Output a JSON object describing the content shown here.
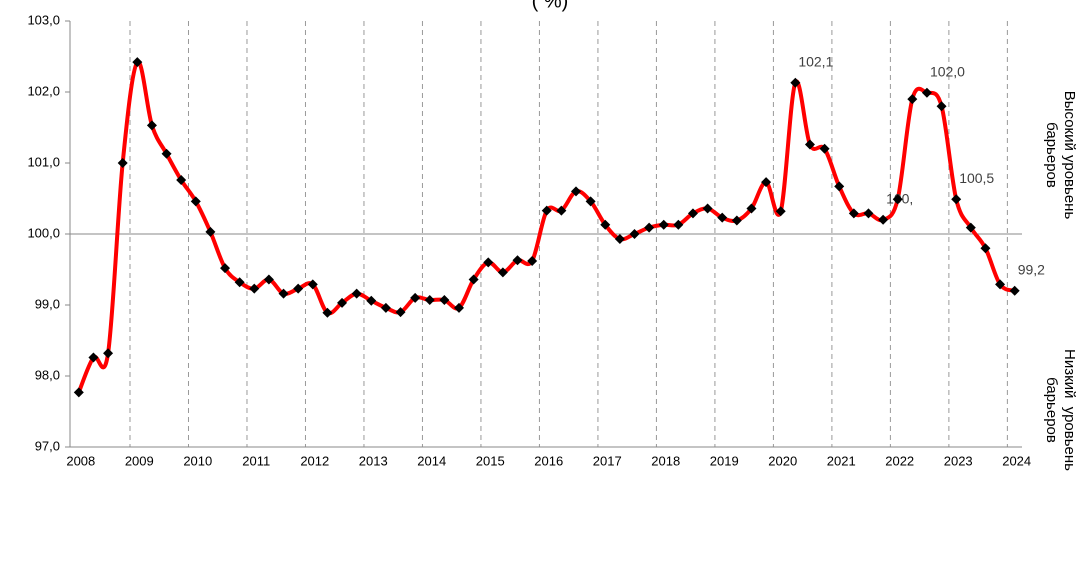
{
  "chart_data": {
    "type": "line",
    "title": "( %)",
    "categories": [
      "2008",
      null,
      null,
      null,
      "2009",
      null,
      null,
      null,
      "2010",
      null,
      null,
      null,
      "2011",
      null,
      null,
      null,
      "2012",
      null,
      null,
      null,
      "2013",
      null,
      null,
      null,
      "2014",
      null,
      null,
      null,
      "2015",
      null,
      null,
      null,
      "2016",
      null,
      null,
      null,
      "2017",
      null,
      null,
      null,
      "2018",
      null,
      null,
      null,
      "2019",
      null,
      null,
      null,
      "2020",
      null,
      null,
      null,
      "2021",
      null,
      null,
      null,
      "2022",
      null,
      null,
      null,
      "2023",
      null,
      null,
      null,
      "2024"
    ],
    "series": [
      {
        "color": "#ff0000",
        "marker_color": "#000000",
        "values": [
          97.77,
          98.26,
          98.32,
          101.0,
          102.42,
          101.53,
          101.13,
          100.76,
          100.46,
          100.03,
          99.52,
          99.32,
          99.23,
          99.36,
          99.16,
          99.23,
          99.29,
          98.89,
          99.03,
          99.16,
          99.06,
          98.96,
          98.9,
          99.1,
          99.07,
          99.07,
          98.96,
          99.36,
          99.6,
          99.46,
          99.63,
          99.62,
          100.33,
          100.33,
          100.6,
          100.46,
          100.13,
          99.93,
          100.0,
          100.09,
          100.13,
          100.13,
          100.29,
          100.36,
          100.23,
          100.19,
          100.36,
          100.73,
          100.32,
          102.13,
          101.26,
          101.2,
          100.67,
          100.29,
          100.29,
          100.2,
          100.49,
          101.9,
          101.99,
          101.8,
          100.49,
          100.09,
          99.8,
          99.29,
          99.2
        ],
        "value_labels": [
          null,
          null,
          null,
          null,
          null,
          null,
          null,
          null,
          null,
          null,
          null,
          null,
          null,
          null,
          null,
          null,
          null,
          null,
          null,
          null,
          null,
          null,
          null,
          null,
          null,
          null,
          null,
          null,
          null,
          null,
          null,
          null,
          null,
          null,
          null,
          null,
          null,
          null,
          null,
          null,
          null,
          null,
          null,
          null,
          null,
          null,
          null,
          null,
          null,
          "102,1",
          null,
          null,
          null,
          null,
          null,
          "100,",
          null,
          null,
          "102,0",
          null,
          "100,5",
          null,
          null,
          null,
          "99,2"
        ]
      }
    ],
    "ylim": [
      97,
      103
    ],
    "yticks": [
      {
        "value": 97,
        "label": "97,0"
      },
      {
        "value": 98,
        "label": "98,0"
      },
      {
        "value": 99,
        "label": "99,0"
      },
      {
        "value": 100,
        "label": "100,0"
      },
      {
        "value": 101,
        "label": "101,0"
      },
      {
        "value": 102,
        "label": "102,0"
      },
      {
        "value": 103,
        "label": "103,0"
      }
    ],
    "x_axis_at": 100,
    "annotations": [
      {
        "lines": [
          "Высокий уровьень",
          "барьеров"
        ]
      },
      {
        "lines": [
          "Низкий  уровьень",
          "барьеров"
        ]
      }
    ]
  }
}
